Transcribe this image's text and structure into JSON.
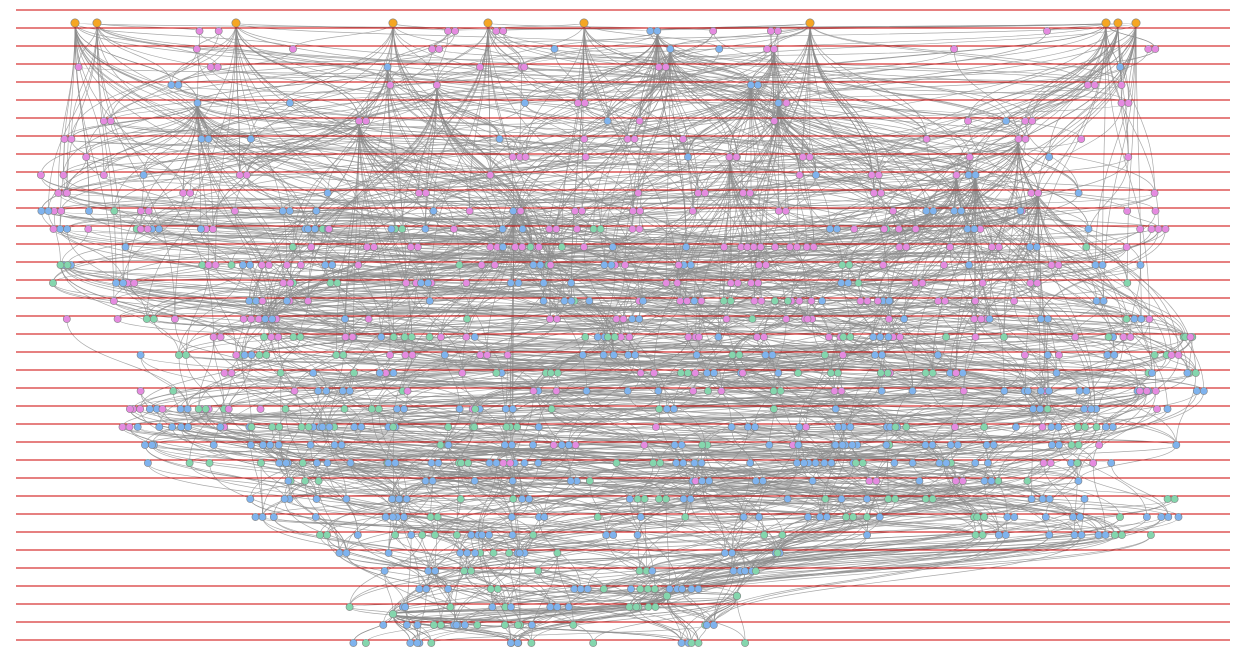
{
  "diagram": {
    "kind": "layered-dag",
    "layer_count": 36,
    "colors": {
      "background": "#ffffff",
      "layer_rule": "#cc0000",
      "edge": "#8c8c8c",
      "node_stroke": "#7f7f7f"
    },
    "node_categories": [
      {
        "id": "source",
        "color": "#f5a623"
      },
      {
        "id": "magenta",
        "color": "#e58be0"
      },
      {
        "id": "blue",
        "color": "#7fb3ee"
      },
      {
        "id": "green",
        "color": "#84d6ad"
      }
    ],
    "layers_category_mix": [
      {
        "blue": 0.0,
        "magenta": 0.0,
        "green": 0.0
      },
      {
        "blue": 0.2,
        "magenta": 0.8,
        "green": 0.0
      },
      {
        "blue": 0.3,
        "magenta": 0.7,
        "green": 0.0
      },
      {
        "blue": 0.3,
        "magenta": 0.7,
        "green": 0.0
      },
      {
        "blue": 0.3,
        "magenta": 0.7,
        "green": 0.0
      },
      {
        "blue": 0.3,
        "magenta": 0.7,
        "green": 0.0
      },
      {
        "blue": 0.2,
        "magenta": 0.8,
        "green": 0.0
      },
      {
        "blue": 0.2,
        "magenta": 0.8,
        "green": 0.0
      },
      {
        "blue": 0.2,
        "magenta": 0.8,
        "green": 0.0
      },
      {
        "blue": 0.2,
        "magenta": 0.8,
        "green": 0.0
      },
      {
        "blue": 0.3,
        "magenta": 0.6,
        "green": 0.1
      },
      {
        "blue": 0.3,
        "magenta": 0.6,
        "green": 0.1
      },
      {
        "blue": 0.3,
        "magenta": 0.5,
        "green": 0.2
      },
      {
        "blue": 0.3,
        "magenta": 0.5,
        "green": 0.2
      },
      {
        "blue": 0.3,
        "magenta": 0.5,
        "green": 0.2
      },
      {
        "blue": 0.3,
        "magenta": 0.5,
        "green": 0.2
      },
      {
        "blue": 0.3,
        "magenta": 0.5,
        "green": 0.2
      },
      {
        "blue": 0.3,
        "magenta": 0.5,
        "green": 0.2
      },
      {
        "blue": 0.3,
        "magenta": 0.5,
        "green": 0.2
      },
      {
        "blue": 0.4,
        "magenta": 0.4,
        "green": 0.2
      },
      {
        "blue": 0.4,
        "magenta": 0.4,
        "green": 0.2
      },
      {
        "blue": 0.4,
        "magenta": 0.4,
        "green": 0.2
      },
      {
        "blue": 0.4,
        "magenta": 0.3,
        "green": 0.3
      },
      {
        "blue": 0.5,
        "magenta": 0.2,
        "green": 0.3
      },
      {
        "blue": 0.5,
        "magenta": 0.2,
        "green": 0.3
      },
      {
        "blue": 0.6,
        "magenta": 0.1,
        "green": 0.3
      },
      {
        "blue": 0.6,
        "magenta": 0.1,
        "green": 0.3
      },
      {
        "blue": 0.6,
        "magenta": 0.0,
        "green": 0.4
      },
      {
        "blue": 0.6,
        "magenta": 0.0,
        "green": 0.4
      },
      {
        "blue": 0.6,
        "magenta": 0.0,
        "green": 0.4
      },
      {
        "blue": 0.6,
        "magenta": 0.0,
        "green": 0.4
      },
      {
        "blue": 0.6,
        "magenta": 0.0,
        "green": 0.4
      },
      {
        "blue": 0.6,
        "magenta": 0.0,
        "green": 0.4
      },
      {
        "blue": 0.6,
        "magenta": 0.0,
        "green": 0.4
      },
      {
        "blue": 0.6,
        "magenta": 0.0,
        "green": 0.4
      },
      {
        "blue": 0.6,
        "magenta": 0.0,
        "green": 0.4
      }
    ]
  }
}
